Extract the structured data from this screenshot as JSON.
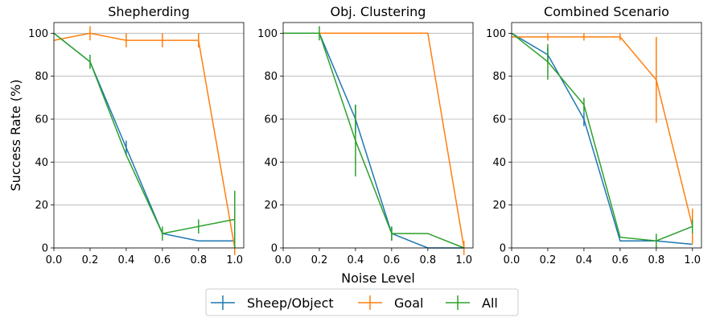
{
  "figure": {
    "xlabel": "Noise Level",
    "ylabel": "Success Rate (%)",
    "legend": {
      "placement": "bottom-center",
      "entries": [
        "Sheep/Object",
        "Goal",
        "All"
      ]
    }
  },
  "chart_data": [
    {
      "type": "line",
      "title": "Shepherding",
      "x": [
        0.0,
        0.2,
        0.4,
        0.6,
        0.8,
        1.0
      ],
      "xticks": [
        "0.0",
        "0.2",
        "0.4",
        "0.6",
        "0.8",
        "1.0"
      ],
      "yticks": [
        "0",
        "20",
        "40",
        "60",
        "80",
        "100"
      ],
      "xlim": [
        0,
        1.05
      ],
      "ylim": [
        0,
        105
      ],
      "grid": "horizontal",
      "series": [
        {
          "name": "Sheep/Object",
          "color": "#1f77b4",
          "values": [
            100,
            86.7,
            46.7,
            6.7,
            3.3,
            3.3
          ],
          "errors": [
            0,
            0,
            3.3,
            0,
            0,
            0
          ]
        },
        {
          "name": "Goal",
          "color": "#ff7f0e",
          "values": [
            96.7,
            100,
            96.7,
            96.7,
            96.7,
            0
          ],
          "errors": [
            0,
            3.3,
            3.3,
            3.3,
            3.3,
            3.3
          ]
        },
        {
          "name": "All",
          "color": "#2ca02c",
          "values": [
            100,
            86.7,
            43.3,
            6.7,
            10,
            13.3
          ],
          "errors": [
            0,
            3.3,
            0,
            3.3,
            3.3,
            13.3
          ]
        }
      ]
    },
    {
      "type": "line",
      "title": "Obj. Clustering",
      "x": [
        0.0,
        0.2,
        0.4,
        0.6,
        0.8,
        1.0
      ],
      "xticks": [
        "0.0",
        "0.2",
        "0.4",
        "0.6",
        "0.8",
        "1.0"
      ],
      "yticks": [
        "0",
        "20",
        "40",
        "60",
        "80",
        "100"
      ],
      "xlim": [
        0,
        1.05
      ],
      "ylim": [
        0,
        105
      ],
      "grid": "horizontal",
      "series": [
        {
          "name": "Sheep/Object",
          "color": "#1f77b4",
          "values": [
            100,
            100,
            60,
            6.7,
            0,
            0
          ],
          "errors": [
            0,
            0,
            6.7,
            3.3,
            0,
            0
          ]
        },
        {
          "name": "Goal",
          "color": "#ff7f0e",
          "values": [
            100,
            100,
            100,
            100,
            100,
            0
          ],
          "errors": [
            0,
            0,
            0,
            0,
            0,
            3.3
          ]
        },
        {
          "name": "All",
          "color": "#2ca02c",
          "values": [
            100,
            100,
            50,
            6.7,
            6.7,
            0
          ],
          "errors": [
            0,
            3.3,
            16.7,
            3.3,
            0,
            0
          ]
        }
      ]
    },
    {
      "type": "line",
      "title": "Combined Scenario",
      "x": [
        0.0,
        0.2,
        0.4,
        0.6,
        0.8,
        1.0
      ],
      "xticks": [
        "0.0",
        "0.2",
        "0.4",
        "0.6",
        "0.8",
        "1.0"
      ],
      "yticks": [
        "0",
        "20",
        "40",
        "60",
        "80",
        "100"
      ],
      "xlim": [
        0,
        1.05
      ],
      "ylim": [
        0,
        105
      ],
      "grid": "horizontal",
      "series": [
        {
          "name": "Sheep/Object",
          "color": "#1f77b4",
          "values": [
            100,
            90,
            60,
            3.3,
            3.3,
            1.7
          ],
          "errors": [
            0,
            3.3,
            3.3,
            0,
            0,
            0
          ]
        },
        {
          "name": "Goal",
          "color": "#ff7f0e",
          "values": [
            98.3,
            98.3,
            98.3,
            98.3,
            78.3,
            10
          ],
          "errors": [
            0,
            1.7,
            1.7,
            1.7,
            20,
            8.3
          ]
        },
        {
          "name": "All",
          "color": "#2ca02c",
          "values": [
            100,
            86.7,
            66.7,
            5,
            3.3,
            10
          ],
          "errors": [
            0,
            8.3,
            3.3,
            0,
            3.3,
            3.3
          ]
        }
      ]
    }
  ]
}
